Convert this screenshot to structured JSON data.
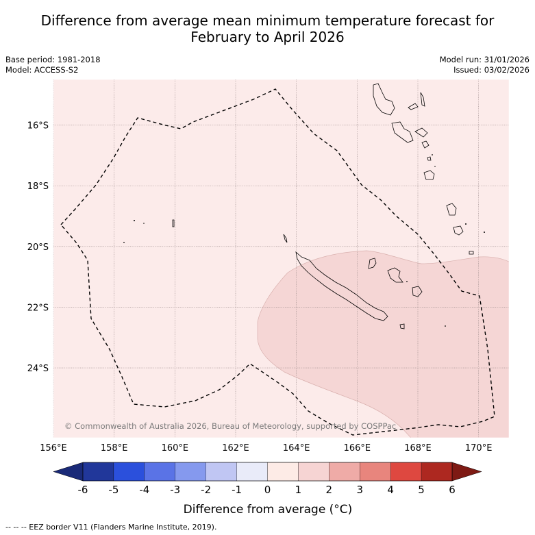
{
  "title_line1": "Difference from average mean minimum temperature forecast for",
  "title_line2": "February to April 2026",
  "meta_left": {
    "base_period": "Base period: 1981-2018",
    "model": "Model: ACCESS-S2"
  },
  "meta_right": {
    "model_run": "Model run: 31/01/2026",
    "issued": "Issued: 03/02/2026"
  },
  "copyright": "© Commonwealth of Australia 2026, Bureau of Meteorology, supported by COSPPac",
  "colorbar_label": "Difference from average (°C)",
  "footnote": "--  --  -- EEZ border V11 (Flanders Marine Institute, 2019).",
  "chart_data": {
    "type": "heatmap",
    "x_ticks": [
      "156°E",
      "158°E",
      "160°E",
      "162°E",
      "164°E",
      "166°E",
      "168°E",
      "170°E"
    ],
    "y_ticks": [
      "16°S",
      "18°S",
      "20°S",
      "22°S",
      "24°S"
    ],
    "xlim": [
      156,
      171
    ],
    "ylim_south": [
      14.5,
      26.3
    ],
    "regions": [
      {
        "name": "background",
        "category": "0 to 1",
        "color": "#fcebea"
      },
      {
        "name": "warm-patch",
        "category": "1 to 2",
        "color": "#f5d6d5"
      }
    ],
    "colorbar": {
      "ticks": [
        "-6",
        "-5",
        "-4",
        "-3",
        "-2",
        "-1",
        "0",
        "1",
        "2",
        "3",
        "4",
        "5",
        "6"
      ],
      "colors": [
        "#21379a",
        "#2b50dc",
        "#5a73e6",
        "#8599ee",
        "#c0c6f3",
        "#e9ebf9",
        "#fdebe6",
        "#f6d4d3",
        "#efaba7",
        "#e8857d",
        "#de4840",
        "#ad2820"
      ],
      "under_color": "#1a2a78",
      "over_color": "#7e1a14"
    }
  }
}
